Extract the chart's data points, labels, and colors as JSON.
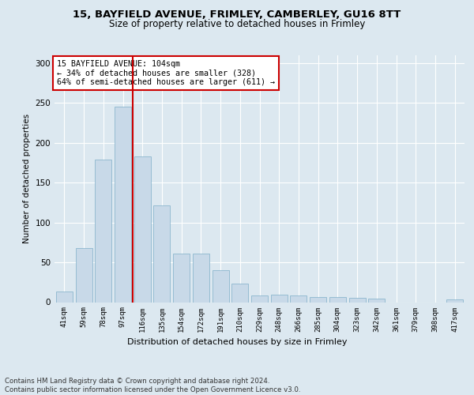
{
  "title1": "15, BAYFIELD AVENUE, FRIMLEY, CAMBERLEY, GU16 8TT",
  "title2": "Size of property relative to detached houses in Frimley",
  "xlabel": "Distribution of detached houses by size in Frimley",
  "ylabel": "Number of detached properties",
  "categories": [
    "41sqm",
    "59sqm",
    "78sqm",
    "97sqm",
    "116sqm",
    "135sqm",
    "154sqm",
    "172sqm",
    "191sqm",
    "210sqm",
    "229sqm",
    "248sqm",
    "266sqm",
    "285sqm",
    "304sqm",
    "323sqm",
    "342sqm",
    "361sqm",
    "379sqm",
    "398sqm",
    "417sqm"
  ],
  "values": [
    13,
    68,
    179,
    246,
    183,
    122,
    61,
    61,
    40,
    23,
    8,
    9,
    8,
    6,
    6,
    5,
    4,
    0,
    0,
    0,
    3
  ],
  "bar_color": "#c8d9e8",
  "bar_edge_color": "#7fafc8",
  "vline_x": 3.5,
  "vline_color": "#cc0000",
  "annotation_text": "15 BAYFIELD AVENUE: 104sqm\n← 34% of detached houses are smaller (328)\n64% of semi-detached houses are larger (611) →",
  "annotation_box_color": "#ffffff",
  "annotation_box_edge": "#cc0000",
  "ylim": [
    0,
    310
  ],
  "yticks": [
    0,
    50,
    100,
    150,
    200,
    250,
    300
  ],
  "footer": "Contains HM Land Registry data © Crown copyright and database right 2024.\nContains public sector information licensed under the Open Government Licence v3.0.",
  "bg_color": "#dce8f0",
  "plot_bg_color": "#dce8f0",
  "title_fontsize": 9.5,
  "subtitle_fontsize": 8.5
}
